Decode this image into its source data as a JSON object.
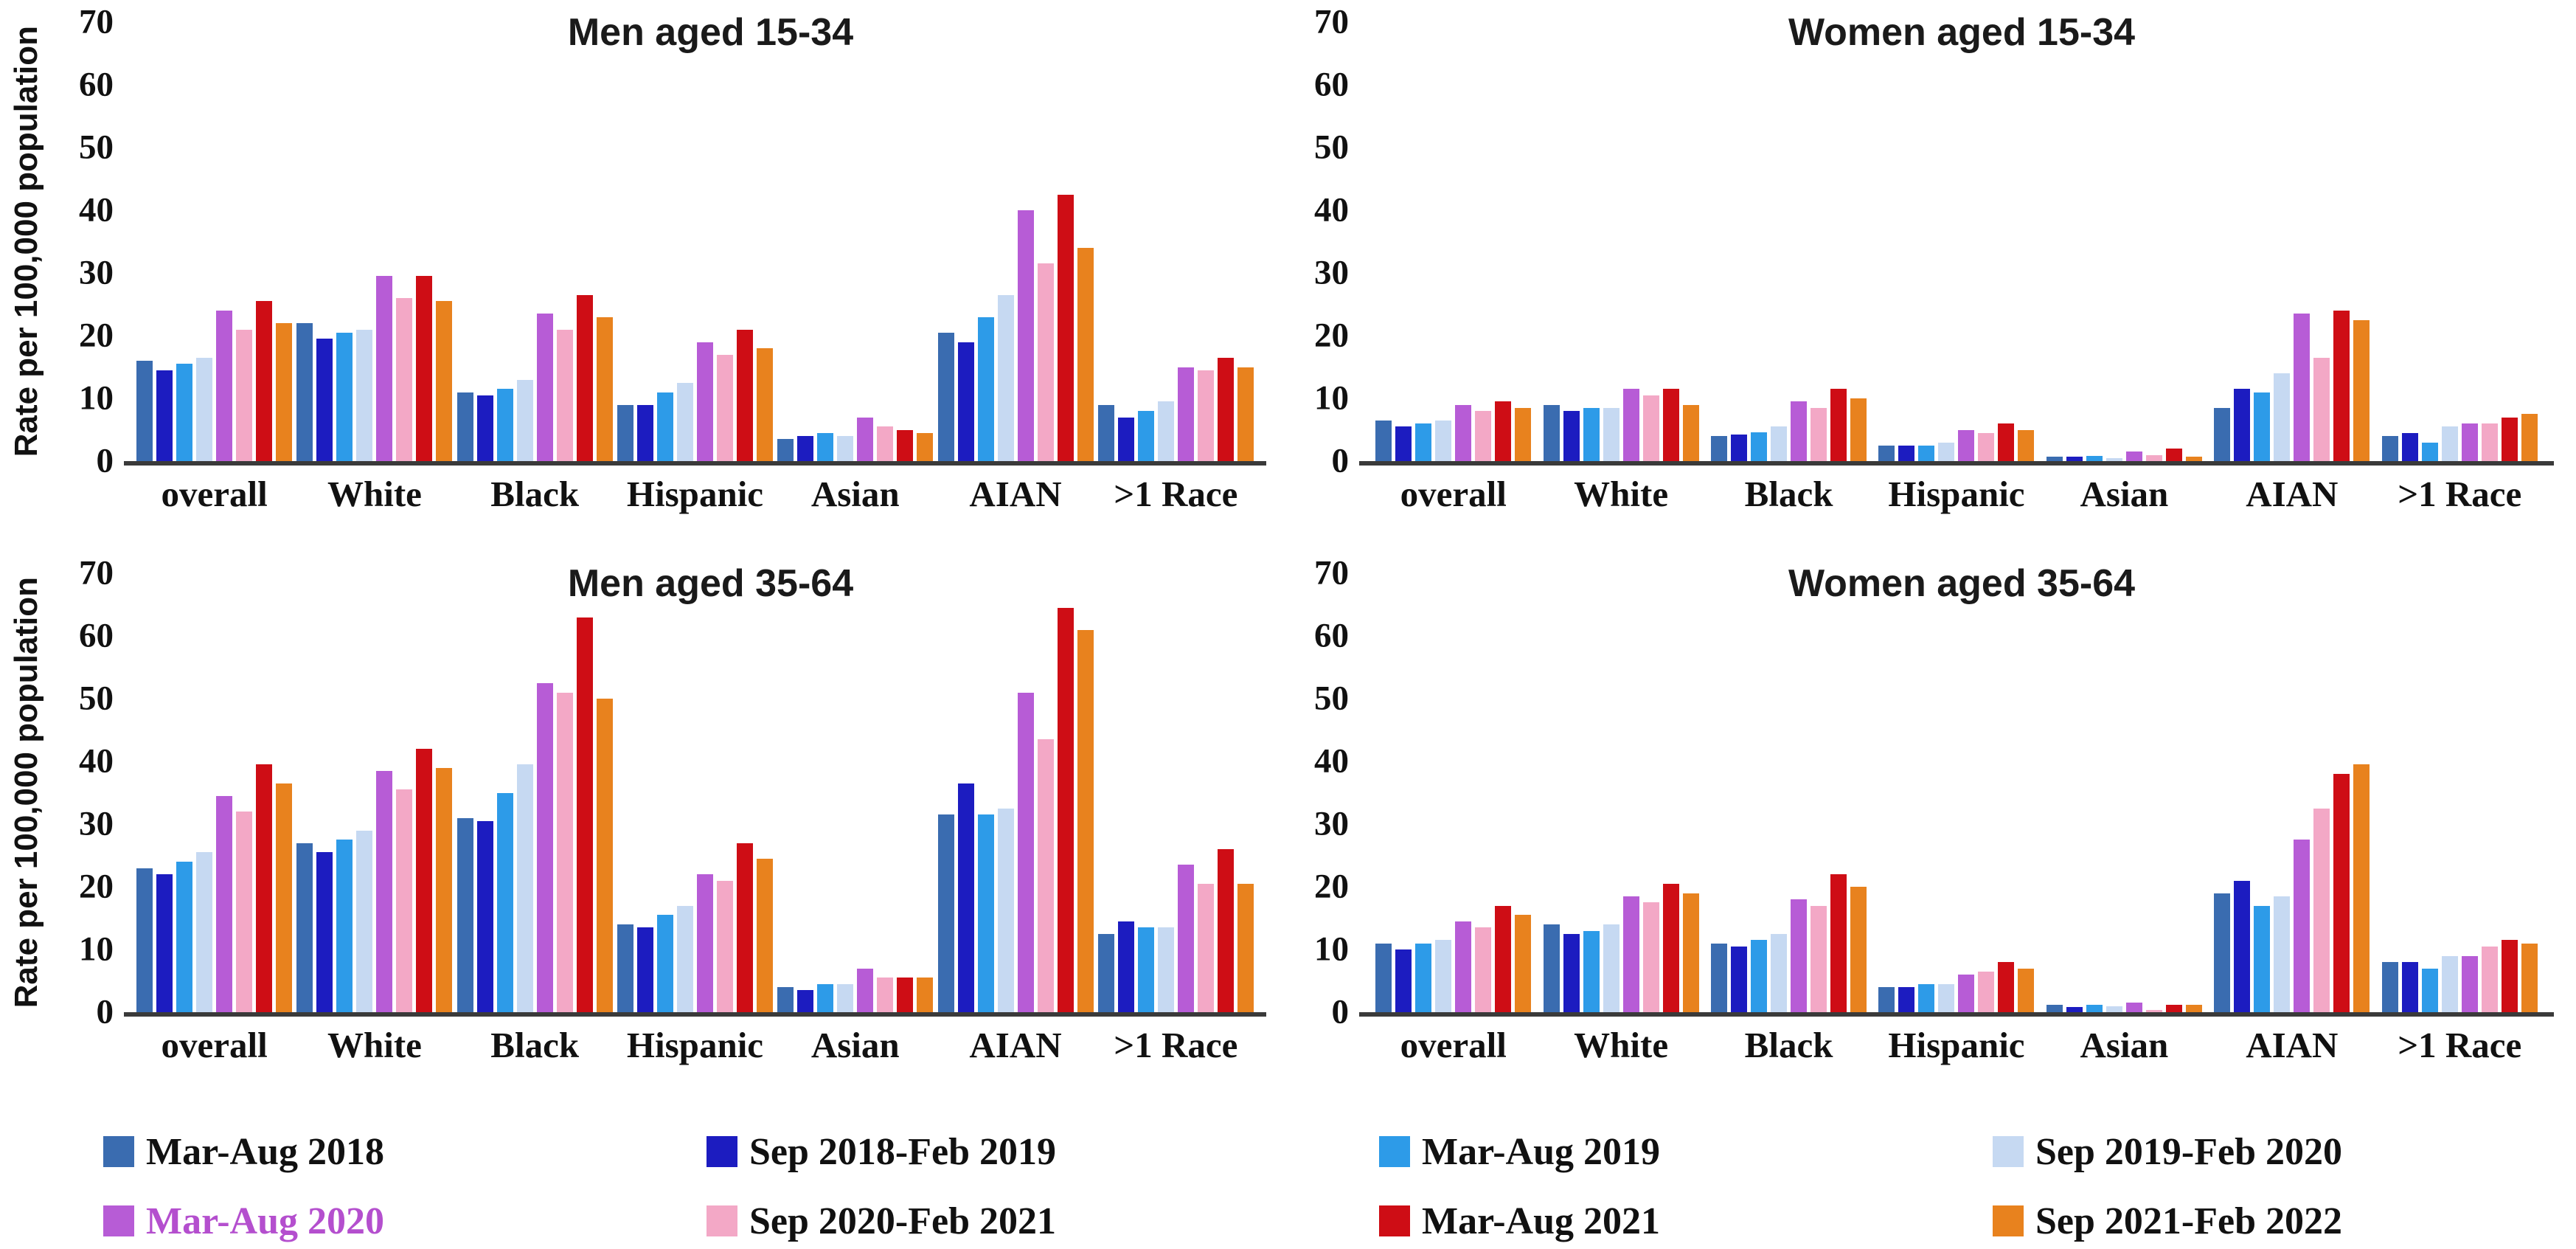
{
  "figure": {
    "y_axis_label": "Rate per 100,000 population",
    "y_ticks": [
      0,
      10,
      20,
      30,
      40,
      50,
      60,
      70
    ],
    "categories": [
      "overall",
      "White",
      "Black",
      "Hispanic",
      "Asian",
      "AIAN",
      ">1 Race"
    ],
    "axis_color": "#3a3a3a"
  },
  "legend": {
    "position": "bottom",
    "items": [
      {
        "label": "Mar-Aug 2018",
        "color": "#3A6CB0",
        "text_color": "#111111"
      },
      {
        "label": "Sep 2018-Feb 2019",
        "color": "#1C1CC0",
        "text_color": "#111111"
      },
      {
        "label": "Mar-Aug 2019",
        "color": "#2D9BE8",
        "text_color": "#111111"
      },
      {
        "label": "Sep 2019-Feb 2020",
        "color": "#C6D9F2",
        "text_color": "#111111"
      },
      {
        "label": "Mar-Aug 2020",
        "color": "#B75CD6",
        "text_color": "#B44FCE"
      },
      {
        "label": "Sep 2020-Feb 2021",
        "color": "#F3A8C6",
        "text_color": "#111111"
      },
      {
        "label": "Mar-Aug 2021",
        "color": "#CE0D15",
        "text_color": "#111111"
      },
      {
        "label": "Sep 2021-Feb 2022",
        "color": "#E8821E",
        "text_color": "#111111"
      }
    ]
  },
  "chart_data": [
    {
      "type": "bar",
      "title": "Men aged 15-34",
      "ylabel": "Rate per 100,000 population",
      "ylim": [
        0,
        70
      ],
      "grid": false,
      "categories": [
        "overall",
        "White",
        "Black",
        "Hispanic",
        "Asian",
        "AIAN",
        ">1 Race"
      ],
      "series": [
        {
          "name": "Mar-Aug 2018",
          "color": "#3A6CB0",
          "values": [
            16,
            22,
            11,
            9,
            3.5,
            20.5,
            9
          ]
        },
        {
          "name": "Sep 2018-Feb 2019",
          "color": "#1C1CC0",
          "values": [
            14.5,
            19.5,
            10.5,
            9,
            4,
            19,
            7
          ]
        },
        {
          "name": "Mar-Aug 2019",
          "color": "#2D9BE8",
          "values": [
            15.5,
            20.5,
            11.5,
            11,
            4.5,
            23,
            8
          ]
        },
        {
          "name": "Sep 2019-Feb 2020",
          "color": "#C6D9F2",
          "values": [
            16.5,
            21,
            13,
            12.5,
            4,
            26.5,
            9.5
          ]
        },
        {
          "name": "Mar-Aug 2020",
          "color": "#B75CD6",
          "values": [
            24,
            29.5,
            23.5,
            19,
            7,
            40,
            15
          ]
        },
        {
          "name": "Sep 2020-Feb 2021",
          "color": "#F3A8C6",
          "values": [
            21,
            26,
            21,
            17,
            5.5,
            31.5,
            14.5
          ]
        },
        {
          "name": "Mar-Aug 2021",
          "color": "#CE0D15",
          "values": [
            25.5,
            29.5,
            26.5,
            21,
            5,
            42.5,
            16.5
          ]
        },
        {
          "name": "Sep 2021-Feb 2022",
          "color": "#E8821E",
          "values": [
            22,
            25.5,
            23,
            18,
            4.5,
            34,
            15
          ]
        }
      ]
    },
    {
      "type": "bar",
      "title": "Women aged 15-34",
      "ylabel": "",
      "ylim": [
        0,
        70
      ],
      "grid": false,
      "categories": [
        "overall",
        "White",
        "Black",
        "Hispanic",
        "Asian",
        "AIAN",
        ">1 Race"
      ],
      "series": [
        {
          "name": "Mar-Aug 2018",
          "color": "#3A6CB0",
          "values": [
            6.5,
            9,
            4,
            2.5,
            0.7,
            8.5,
            4
          ]
        },
        {
          "name": "Sep 2018-Feb 2019",
          "color": "#1C1CC0",
          "values": [
            5.5,
            8,
            4.2,
            2.5,
            0.7,
            11.5,
            4.5
          ]
        },
        {
          "name": "Mar-Aug 2019",
          "color": "#2D9BE8",
          "values": [
            6,
            8.5,
            4.6,
            2.5,
            0.8,
            11,
            3
          ]
        },
        {
          "name": "Sep 2019-Feb 2020",
          "color": "#C6D9F2",
          "values": [
            6.5,
            8.5,
            5.5,
            3,
            0.5,
            14,
            5.5
          ]
        },
        {
          "name": "Mar-Aug 2020",
          "color": "#B75CD6",
          "values": [
            9,
            11.5,
            9.5,
            5,
            1.5,
            23.5,
            6
          ]
        },
        {
          "name": "Sep 2020-Feb 2021",
          "color": "#F3A8C6",
          "values": [
            8,
            10.5,
            8.5,
            4.5,
            1,
            16.5,
            6
          ]
        },
        {
          "name": "Mar-Aug 2021",
          "color": "#CE0D15",
          "values": [
            9.5,
            11.5,
            11.5,
            6,
            2,
            24,
            7
          ]
        },
        {
          "name": "Sep 2021-Feb 2022",
          "color": "#E8821E",
          "values": [
            8.5,
            9,
            10,
            5,
            0.7,
            22.5,
            7.5
          ]
        }
      ]
    },
    {
      "type": "bar",
      "title": "Men aged 35-64",
      "ylabel": "Rate per 100,000 population",
      "ylim": [
        0,
        70
      ],
      "grid": false,
      "categories": [
        "overall",
        "White",
        "Black",
        "Hispanic",
        "Asian",
        "AIAN",
        ">1 Race"
      ],
      "series": [
        {
          "name": "Mar-Aug 2018",
          "color": "#3A6CB0",
          "values": [
            23,
            27,
            31,
            14,
            4,
            31.5,
            12.5
          ]
        },
        {
          "name": "Sep 2018-Feb 2019",
          "color": "#1C1CC0",
          "values": [
            22,
            25.5,
            30.5,
            13.5,
            3.5,
            36.5,
            14.5
          ]
        },
        {
          "name": "Mar-Aug 2019",
          "color": "#2D9BE8",
          "values": [
            24,
            27.5,
            35,
            15.5,
            4.5,
            31.5,
            13.5
          ]
        },
        {
          "name": "Sep 2019-Feb 2020",
          "color": "#C6D9F2",
          "values": [
            25.5,
            29,
            39.5,
            17,
            4.5,
            32.5,
            13.5
          ]
        },
        {
          "name": "Mar-Aug 2020",
          "color": "#B75CD6",
          "values": [
            34.5,
            38.5,
            52.5,
            22,
            7,
            51,
            23.5
          ]
        },
        {
          "name": "Sep 2020-Feb 2021",
          "color": "#F3A8C6",
          "values": [
            32,
            35.5,
            51,
            21,
            5.5,
            43.5,
            20.5
          ]
        },
        {
          "name": "Mar-Aug 2021",
          "color": "#CE0D15",
          "values": [
            39.5,
            42,
            63,
            27,
            5.5,
            64.5,
            26
          ]
        },
        {
          "name": "Sep 2021-Feb 2022",
          "color": "#E8821E",
          "values": [
            36.5,
            39,
            50,
            24.5,
            5.5,
            61,
            20.5
          ]
        }
      ]
    },
    {
      "type": "bar",
      "title": "Women aged 35-64",
      "ylabel": "",
      "ylim": [
        0,
        70
      ],
      "grid": false,
      "categories": [
        "overall",
        "White",
        "Black",
        "Hispanic",
        "Asian",
        "AIAN",
        ">1 Race"
      ],
      "series": [
        {
          "name": "Mar-Aug 2018",
          "color": "#3A6CB0",
          "values": [
            11,
            14,
            11,
            4,
            1.2,
            19,
            8
          ]
        },
        {
          "name": "Sep 2018-Feb 2019",
          "color": "#1C1CC0",
          "values": [
            10,
            12.5,
            10.5,
            4,
            0.8,
            21,
            8
          ]
        },
        {
          "name": "Mar-Aug 2019",
          "color": "#2D9BE8",
          "values": [
            11,
            13,
            11.5,
            4.5,
            1.2,
            17,
            7
          ]
        },
        {
          "name": "Sep 2019-Feb 2020",
          "color": "#C6D9F2",
          "values": [
            11.5,
            14,
            12.5,
            4.5,
            1,
            18.5,
            9
          ]
        },
        {
          "name": "Mar-Aug 2020",
          "color": "#B75CD6",
          "values": [
            14.5,
            18.5,
            18,
            6,
            1.5,
            27.5,
            9
          ]
        },
        {
          "name": "Sep 2020-Feb 2021",
          "color": "#F3A8C6",
          "values": [
            13.5,
            17.5,
            17,
            6.5,
            0.3,
            32.5,
            10.5
          ]
        },
        {
          "name": "Mar-Aug 2021",
          "color": "#CE0D15",
          "values": [
            17,
            20.5,
            22,
            8,
            1.2,
            38,
            11.5
          ]
        },
        {
          "name": "Sep 2021-Feb 2022",
          "color": "#E8821E",
          "values": [
            15.5,
            19,
            20,
            7,
            1.2,
            39.5,
            11
          ]
        }
      ]
    }
  ]
}
